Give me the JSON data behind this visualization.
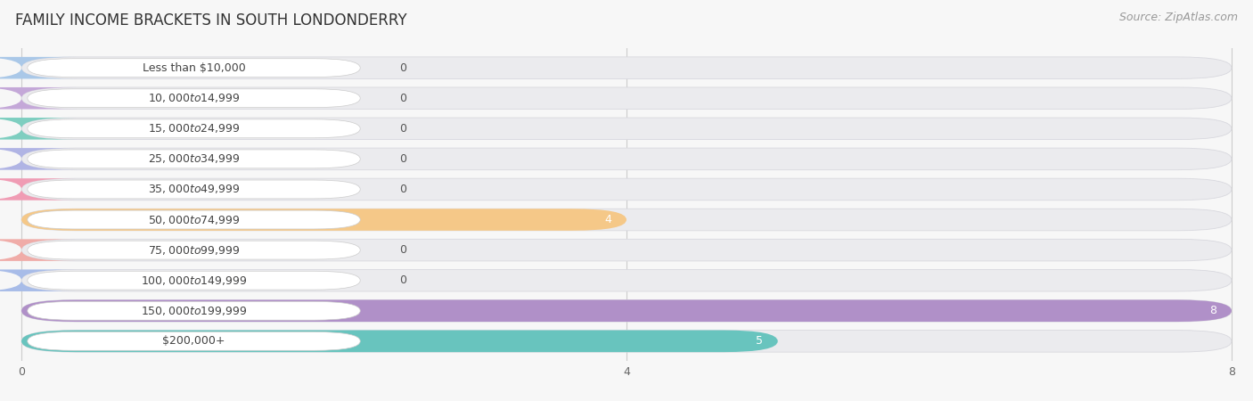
{
  "title": "FAMILY INCOME BRACKETS IN SOUTH LONDONDERRY",
  "source": "Source: ZipAtlas.com",
  "categories": [
    "Less than $10,000",
    "$10,000 to $14,999",
    "$15,000 to $24,999",
    "$25,000 to $34,999",
    "$35,000 to $49,999",
    "$50,000 to $74,999",
    "$75,000 to $99,999",
    "$100,000 to $149,999",
    "$150,000 to $199,999",
    "$200,000+"
  ],
  "values": [
    0,
    0,
    0,
    0,
    0,
    4,
    0,
    0,
    8,
    5
  ],
  "bar_colors": [
    "#aac8e8",
    "#c4a8d8",
    "#7ecec0",
    "#b0b4e4",
    "#f09cb4",
    "#f5c888",
    "#f0aca8",
    "#a8bce8",
    "#b090c8",
    "#68c4be"
  ],
  "xlim_max": 8,
  "xticks": [
    0,
    4,
    8
  ],
  "background_color": "#f7f7f7",
  "bar_bg_color": "#ebebeb",
  "title_fontsize": 12,
  "source_fontsize": 9,
  "label_fontsize": 9,
  "value_fontsize": 9
}
